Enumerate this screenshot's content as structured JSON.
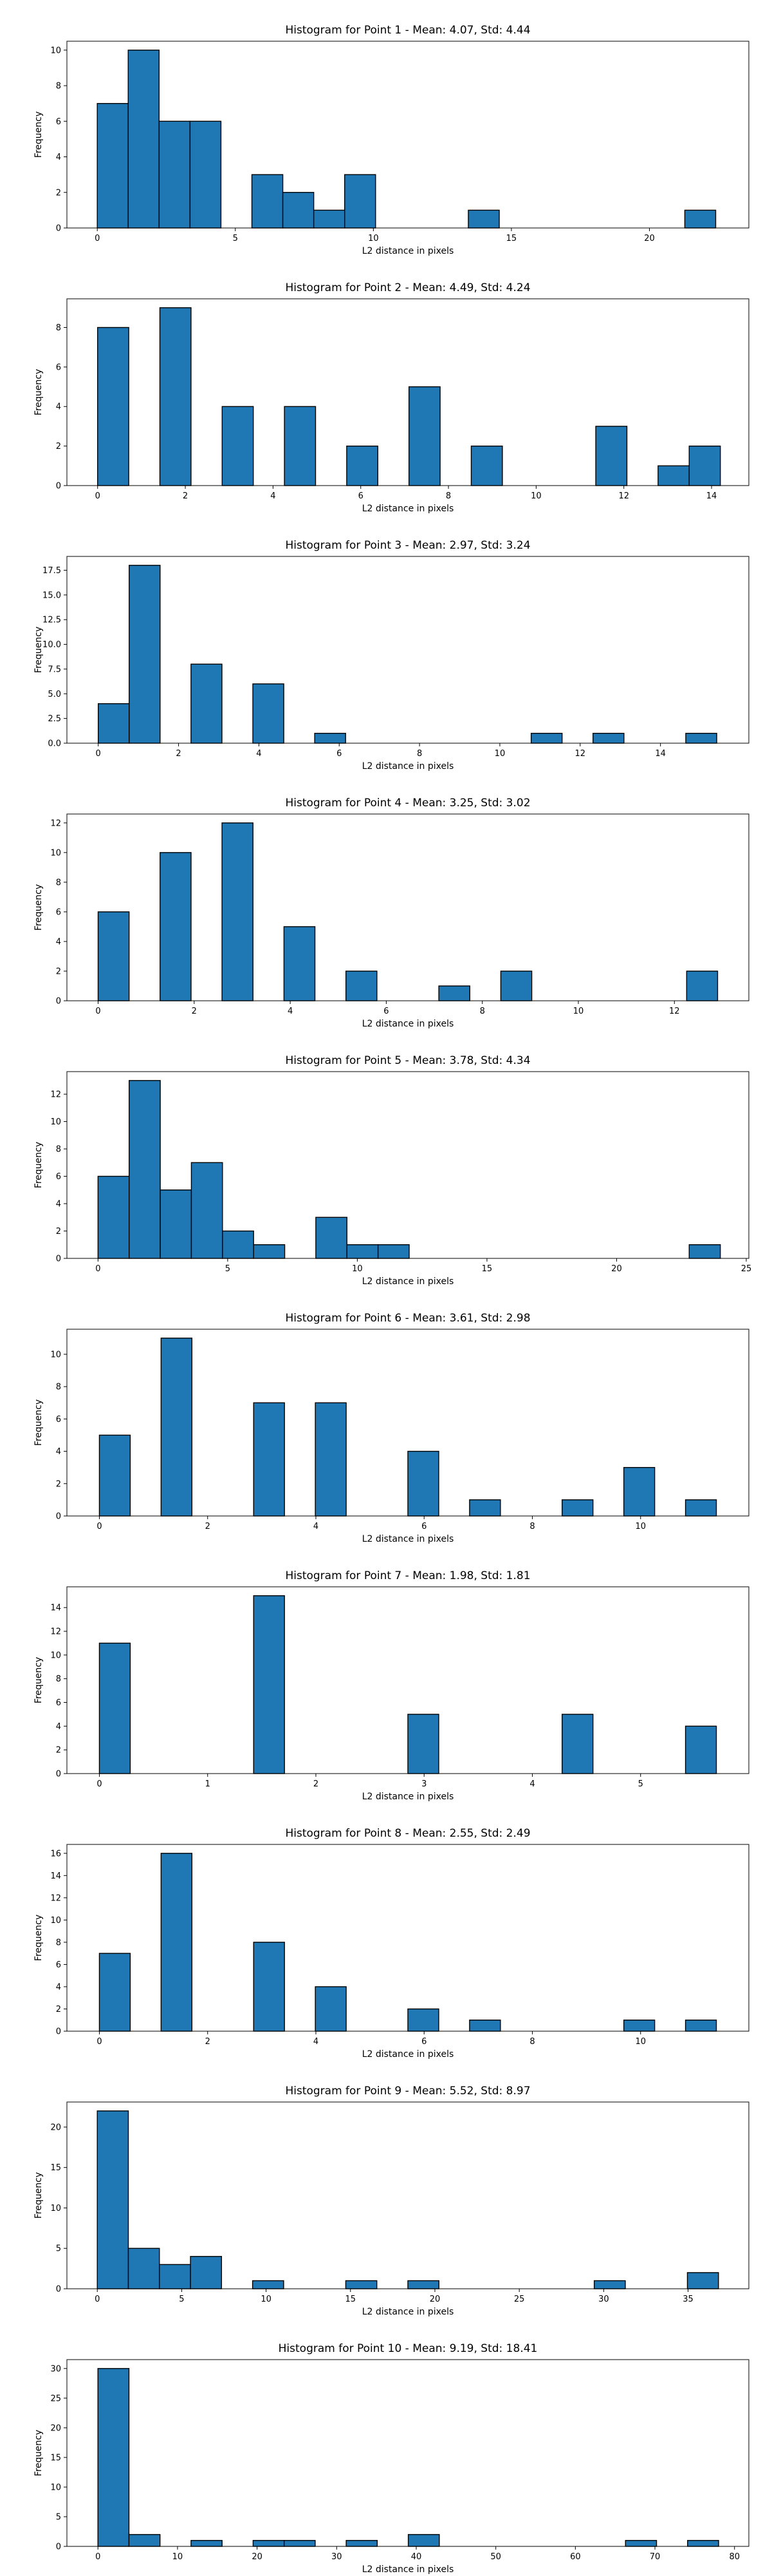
{
  "figure": {
    "background": "#ffffff",
    "bar_color": "#1f77b4",
    "bar_edge_color": "#000000"
  },
  "chart_data": [
    {
      "type": "bar",
      "title": "Histogram for Point 1 - Mean: 4.07, Std: 4.44",
      "xlabel": "L2 distance in pixels",
      "ylabel": "Frequency",
      "xlim": [
        -1.1,
        23.6
      ],
      "ylim": [
        0,
        10.5
      ],
      "xticks": [
        0,
        5,
        10,
        15,
        20
      ],
      "yticks": [
        0,
        2,
        4,
        6,
        8,
        10
      ],
      "tick_labels_x": [
        "0",
        "5",
        "10",
        "15",
        "20"
      ],
      "tick_labels_y": [
        "0",
        "2",
        "4",
        "6",
        "8",
        "10"
      ],
      "bin_edges": [
        0.0,
        1.12,
        2.24,
        3.36,
        4.48,
        5.6,
        6.72,
        7.84,
        8.96,
        10.08,
        11.2,
        12.32,
        13.44,
        14.56,
        15.68,
        16.8,
        17.92,
        19.04,
        20.16,
        21.28,
        22.4
      ],
      "values": [
        7,
        10,
        6,
        6,
        0,
        3,
        2,
        1,
        3,
        0,
        0,
        0,
        1,
        0,
        0,
        0,
        0,
        0,
        0,
        1
      ],
      "grid": false
    },
    {
      "type": "bar",
      "title": "Histogram for Point 2 - Mean: 4.49, Std: 4.24",
      "xlabel": "L2 distance in pixels",
      "ylabel": "Frequency",
      "xlim": [
        -0.7,
        14.85
      ],
      "ylim": [
        0,
        9.45
      ],
      "xticks": [
        0,
        2,
        4,
        6,
        8,
        10,
        12,
        14
      ],
      "yticks": [
        0,
        2,
        4,
        6,
        8
      ],
      "tick_labels_x": [
        "0",
        "2",
        "4",
        "6",
        "8",
        "10",
        "12",
        "14"
      ],
      "tick_labels_y": [
        "0",
        "2",
        "4",
        "6",
        "8"
      ],
      "bin_edges": [
        0.0,
        0.71,
        1.42,
        2.13,
        2.84,
        3.55,
        4.26,
        4.97,
        5.68,
        6.39,
        7.1,
        7.81,
        8.52,
        9.23,
        9.94,
        10.65,
        11.36,
        12.07,
        12.78,
        13.49,
        14.2
      ],
      "values": [
        8,
        0,
        9,
        0,
        4,
        0,
        4,
        0,
        2,
        0,
        5,
        0,
        2,
        0,
        0,
        0,
        3,
        0,
        1,
        2
      ],
      "grid": false
    },
    {
      "type": "bar",
      "title": "Histogram for Point 3 - Mean: 2.97, Std: 3.24",
      "xlabel": "L2 distance in pixels",
      "ylabel": "Frequency",
      "xlim": [
        -0.78,
        16.2
      ],
      "ylim": [
        0,
        18.9
      ],
      "xticks": [
        0,
        2,
        4,
        6,
        8,
        10,
        12,
        14
      ],
      "yticks": [
        0.0,
        2.5,
        5.0,
        7.5,
        10.0,
        12.5,
        15.0,
        17.5
      ],
      "tick_labels_x": [
        "0",
        "2",
        "4",
        "6",
        "8",
        "10",
        "12",
        "14"
      ],
      "tick_labels_y": [
        "0.0",
        "2.5",
        "5.0",
        "7.5",
        "10.0",
        "12.5",
        "15.0",
        "17.5"
      ],
      "bin_edges": [
        0.0,
        0.77,
        1.54,
        2.31,
        3.08,
        3.85,
        4.62,
        5.39,
        6.16,
        6.93,
        7.7,
        8.47,
        9.24,
        10.01,
        10.78,
        11.55,
        12.32,
        13.09,
        13.86,
        14.63,
        15.4
      ],
      "values": [
        4,
        18,
        0,
        8,
        0,
        6,
        0,
        1,
        0,
        0,
        0,
        0,
        0,
        0,
        1,
        0,
        1,
        0,
        0,
        1
      ],
      "grid": false
    },
    {
      "type": "bar",
      "title": "Histogram for Point 4 - Mean: 3.25, Std: 3.02",
      "xlabel": "L2 distance in pixels",
      "ylabel": "Frequency",
      "xlim": [
        -0.65,
        13.55
      ],
      "ylim": [
        0,
        12.6
      ],
      "xticks": [
        0,
        2,
        4,
        6,
        8,
        10,
        12
      ],
      "yticks": [
        0,
        2,
        4,
        6,
        8,
        10,
        12
      ],
      "tick_labels_x": [
        "0",
        "2",
        "4",
        "6",
        "8",
        "10",
        "12"
      ],
      "tick_labels_y": [
        "0",
        "2",
        "4",
        "6",
        "8",
        "10",
        "12"
      ],
      "bin_edges": [
        0.0,
        0.645,
        1.29,
        1.935,
        2.58,
        3.225,
        3.87,
        4.515,
        5.16,
        5.805,
        6.45,
        7.095,
        7.74,
        8.385,
        9.03,
        9.675,
        10.32,
        10.965,
        11.61,
        12.255,
        12.9
      ],
      "values": [
        6,
        0,
        10,
        0,
        12,
        0,
        5,
        0,
        2,
        0,
        0,
        1,
        0,
        2,
        0,
        0,
        0,
        0,
        0,
        2
      ],
      "grid": false
    },
    {
      "type": "bar",
      "title": "Histogram for Point 5 - Mean: 3.78, Std: 4.34",
      "xlabel": "L2 distance in pixels",
      "ylabel": "Frequency",
      "xlim": [
        -1.2,
        25.1
      ],
      "ylim": [
        0,
        13.65
      ],
      "xticks": [
        0,
        5,
        10,
        15,
        20,
        25
      ],
      "yticks": [
        0,
        2,
        4,
        6,
        8,
        10,
        12
      ],
      "tick_labels_x": [
        "0",
        "5",
        "10",
        "15",
        "20",
        "25"
      ],
      "tick_labels_y": [
        "0",
        "2",
        "4",
        "6",
        "8",
        "10",
        "12"
      ],
      "bin_edges": [
        0.0,
        1.2,
        2.4,
        3.6,
        4.8,
        6.0,
        7.2,
        8.4,
        9.6,
        10.8,
        12.0,
        13.2,
        14.4,
        15.6,
        16.8,
        18.0,
        19.2,
        20.4,
        21.6,
        22.8,
        24.0
      ],
      "values": [
        6,
        13,
        5,
        7,
        2,
        1,
        0,
        3,
        1,
        1,
        0,
        0,
        0,
        0,
        0,
        0,
        0,
        0,
        0,
        1
      ],
      "grid": false
    },
    {
      "type": "bar",
      "title": "Histogram for Point 6 - Mean: 3.61, Std: 2.98",
      "xlabel": "L2 distance in pixels",
      "ylabel": "Frequency",
      "xlim": [
        -0.6,
        12.0
      ],
      "ylim": [
        0,
        11.55
      ],
      "xticks": [
        0,
        2,
        4,
        6,
        8,
        10
      ],
      "yticks": [
        0,
        2,
        4,
        6,
        8,
        10
      ],
      "tick_labels_x": [
        "0",
        "2",
        "4",
        "6",
        "8",
        "10"
      ],
      "tick_labels_y": [
        "0",
        "2",
        "4",
        "6",
        "8",
        "10"
      ],
      "bin_edges": [
        0.0,
        0.57,
        1.14,
        1.71,
        2.28,
        2.85,
        3.42,
        3.99,
        4.56,
        5.13,
        5.7,
        6.27,
        6.84,
        7.41,
        7.98,
        8.55,
        9.12,
        9.69,
        10.26,
        10.83,
        11.4
      ],
      "values": [
        5,
        0,
        11,
        0,
        0,
        7,
        0,
        7,
        0,
        0,
        4,
        0,
        1,
        0,
        0,
        1,
        0,
        3,
        0,
        1
      ],
      "grid": false
    },
    {
      "type": "bar",
      "title": "Histogram for Point 7 - Mean: 1.98, Std: 1.81",
      "xlabel": "L2 distance in pixels",
      "ylabel": "Frequency",
      "xlim": [
        -0.3,
        6.0
      ],
      "ylim": [
        0,
        15.75
      ],
      "xticks": [
        0,
        1,
        2,
        3,
        4,
        5
      ],
      "yticks": [
        0,
        2,
        4,
        6,
        8,
        10,
        12,
        14
      ],
      "tick_labels_x": [
        "0",
        "1",
        "2",
        "3",
        "4",
        "5"
      ],
      "tick_labels_y": [
        "0",
        "2",
        "4",
        "6",
        "8",
        "10",
        "12",
        "14"
      ],
      "bin_edges": [
        0.0,
        0.285,
        0.57,
        0.855,
        1.14,
        1.425,
        1.71,
        1.995,
        2.28,
        2.565,
        2.85,
        3.135,
        3.42,
        3.705,
        3.99,
        4.275,
        4.56,
        4.845,
        5.13,
        5.415,
        5.7
      ],
      "values": [
        11,
        0,
        0,
        0,
        0,
        15,
        0,
        0,
        0,
        0,
        5,
        0,
        0,
        0,
        0,
        5,
        0,
        0,
        0,
        4
      ],
      "grid": false
    },
    {
      "type": "bar",
      "title": "Histogram for Point 8 - Mean: 2.55, Std: 2.49",
      "xlabel": "L2 distance in pixels",
      "ylabel": "Frequency",
      "xlim": [
        -0.6,
        12.0
      ],
      "ylim": [
        0,
        16.8
      ],
      "xticks": [
        0,
        2,
        4,
        6,
        8,
        10
      ],
      "yticks": [
        0,
        2,
        4,
        6,
        8,
        10,
        12,
        14,
        16
      ],
      "tick_labels_x": [
        "0",
        "2",
        "4",
        "6",
        "8",
        "10"
      ],
      "tick_labels_y": [
        "0",
        "2",
        "4",
        "6",
        "8",
        "10",
        "12",
        "14",
        "16"
      ],
      "bin_edges": [
        0.0,
        0.57,
        1.14,
        1.71,
        2.28,
        2.85,
        3.42,
        3.99,
        4.56,
        5.13,
        5.7,
        6.27,
        6.84,
        7.41,
        7.98,
        8.55,
        9.12,
        9.69,
        10.26,
        10.83,
        11.4
      ],
      "values": [
        7,
        0,
        16,
        0,
        0,
        8,
        0,
        4,
        0,
        0,
        2,
        0,
        1,
        0,
        0,
        0,
        0,
        1,
        0,
        1
      ],
      "grid": false
    },
    {
      "type": "bar",
      "title": "Histogram for Point 9 - Mean: 5.52, Std: 8.97",
      "xlabel": "L2 distance in pixels",
      "ylabel": "Frequency",
      "xlim": [
        -1.8,
        38.6
      ],
      "ylim": [
        0,
        23.1
      ],
      "xticks": [
        0,
        5,
        10,
        15,
        20,
        25,
        30,
        35
      ],
      "yticks": [
        0,
        5,
        10,
        15,
        20
      ],
      "tick_labels_x": [
        "0",
        "5",
        "10",
        "15",
        "20",
        "25",
        "30",
        "35"
      ],
      "tick_labels_y": [
        "0",
        "5",
        "10",
        "15",
        "20"
      ],
      "bin_edges": [
        0.0,
        1.84,
        3.68,
        5.52,
        7.36,
        9.2,
        11.04,
        12.88,
        14.72,
        16.56,
        18.4,
        20.24,
        22.08,
        23.92,
        25.76,
        27.6,
        29.44,
        31.28,
        33.12,
        34.96,
        36.8
      ],
      "values": [
        22,
        5,
        3,
        4,
        0,
        1,
        0,
        0,
        1,
        0,
        1,
        0,
        0,
        0,
        0,
        0,
        1,
        0,
        0,
        2
      ],
      "grid": false
    },
    {
      "type": "bar",
      "title": "Histogram for Point 10 - Mean: 9.19, Std: 18.41",
      "xlabel": "L2 distance in pixels",
      "ylabel": "Frequency",
      "xlim": [
        -3.9,
        81.8
      ],
      "ylim": [
        0,
        31.5
      ],
      "xticks": [
        0,
        10,
        20,
        30,
        40,
        50,
        60,
        70,
        80
      ],
      "yticks": [
        0,
        5,
        10,
        15,
        20,
        25,
        30
      ],
      "tick_labels_x": [
        "0",
        "10",
        "20",
        "30",
        "40",
        "50",
        "60",
        "70",
        "80"
      ],
      "tick_labels_y": [
        "0",
        "5",
        "10",
        "15",
        "20",
        "25",
        "30"
      ],
      "bin_edges": [
        0.0,
        3.9,
        7.8,
        11.7,
        15.6,
        19.5,
        23.4,
        27.3,
        31.2,
        35.1,
        39.0,
        42.9,
        46.8,
        50.7,
        54.6,
        58.5,
        62.4,
        66.3,
        70.2,
        74.1,
        78.0
      ],
      "values": [
        30,
        2,
        0,
        1,
        0,
        1,
        1,
        0,
        1,
        0,
        2,
        0,
        0,
        0,
        0,
        0,
        0,
        1,
        0,
        1
      ],
      "grid": false
    }
  ]
}
